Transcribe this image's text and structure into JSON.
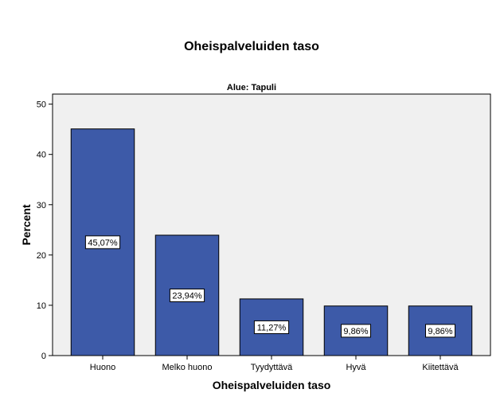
{
  "chart_data": {
    "type": "bar",
    "title": "Oheispalveluiden taso",
    "panel_label": "Alue: Tapuli",
    "xlabel": "Oheispalveluiden taso",
    "ylabel": "Percent",
    "categories": [
      "Huono",
      "Melko huono",
      "Tyydyttävä",
      "Hyvä",
      "Kiitettävä"
    ],
    "values": [
      45.07,
      23.94,
      11.27,
      9.86,
      9.86
    ],
    "value_labels": [
      "45,07%",
      "23,94%",
      "11,27%",
      "9,86%",
      "9,86%"
    ],
    "ylim": [
      0,
      52
    ],
    "yticks": [
      0,
      10,
      20,
      30,
      40,
      50
    ],
    "ytick_labels": [
      "0",
      "10",
      "20",
      "30",
      "40",
      "50"
    ],
    "grid": false,
    "legend": "none",
    "colors": {
      "bar": "#3d5aa8",
      "plot_background": "#f0f0f0",
      "bar_outline": "#000000"
    }
  }
}
